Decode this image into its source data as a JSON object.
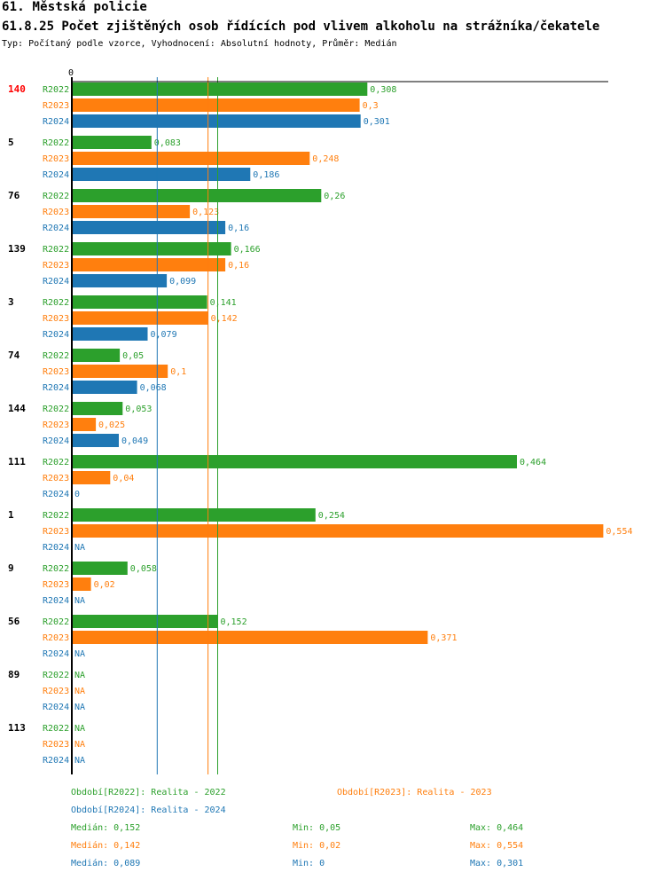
{
  "title": "61. Městská policie",
  "subtitle": "61.8.25 Počet zjištěných osob řídících pod vlivem alkoholu na strážníka/čekatele",
  "meta": "Typ: Počítaný podle vzorce, Vyhodnocení: Absolutní hodnoty, Průměr: Medián",
  "colors": {
    "R2022": "#2ca02c",
    "R2023": "#ff7f0e",
    "R2024": "#1f77b4",
    "highlight": "#ff0000",
    "axis": "#000000"
  },
  "chart_data": {
    "type": "bar",
    "orientation": "horizontal",
    "axis_zero_label": "0",
    "xlim": [
      0,
      0.554
    ],
    "series_names": [
      "R2022",
      "R2023",
      "R2024"
    ],
    "highlight_group": "140",
    "groups": [
      {
        "id": "140",
        "values": [
          0.308,
          0.3,
          0.301
        ],
        "labels": [
          "0,308",
          "0,3",
          "0,301"
        ]
      },
      {
        "id": "5",
        "values": [
          0.083,
          0.248,
          0.186
        ],
        "labels": [
          "0,083",
          "0,248",
          "0,186"
        ]
      },
      {
        "id": "76",
        "values": [
          0.26,
          0.123,
          0.16
        ],
        "labels": [
          "0,26",
          "0,123",
          "0,16"
        ]
      },
      {
        "id": "139",
        "values": [
          0.166,
          0.16,
          0.099
        ],
        "labels": [
          "0,166",
          "0,16",
          "0,099"
        ]
      },
      {
        "id": "3",
        "values": [
          0.141,
          0.142,
          0.079
        ],
        "labels": [
          "0,141",
          "0,142",
          "0,079"
        ]
      },
      {
        "id": "74",
        "values": [
          0.05,
          0.1,
          0.068
        ],
        "labels": [
          "0,05",
          "0,1",
          "0,068"
        ]
      },
      {
        "id": "144",
        "values": [
          0.053,
          0.025,
          0.049
        ],
        "labels": [
          "0,053",
          "0,025",
          "0,049"
        ]
      },
      {
        "id": "111",
        "values": [
          0.464,
          0.04,
          0
        ],
        "labels": [
          "0,464",
          "0,04",
          "0"
        ]
      },
      {
        "id": "1",
        "values": [
          0.254,
          0.554,
          null
        ],
        "labels": [
          "0,254",
          "0,554",
          "NA"
        ]
      },
      {
        "id": "9",
        "values": [
          0.058,
          0.02,
          null
        ],
        "labels": [
          "0,058",
          "0,02",
          "NA"
        ]
      },
      {
        "id": "56",
        "values": [
          0.152,
          0.371,
          null
        ],
        "labels": [
          "0,152",
          "0,371",
          "NA"
        ]
      },
      {
        "id": "89",
        "values": [
          null,
          null,
          null
        ],
        "labels": [
          "NA",
          "NA",
          "NA"
        ]
      },
      {
        "id": "113",
        "values": [
          null,
          null,
          null
        ],
        "labels": [
          "NA",
          "NA",
          "NA"
        ]
      }
    ],
    "medians": [
      0.152,
      0.142,
      0.089
    ]
  },
  "legend": {
    "periods": [
      {
        "series": "R2022",
        "text": "Období[R2022]: Realita - 2022"
      },
      {
        "series": "R2023",
        "text": "Období[R2023]: Realita - 2023"
      },
      {
        "series": "R2024",
        "text": "Období[R2024]: Realita - 2024"
      }
    ],
    "stats": [
      {
        "series": "R2022",
        "median": "Medián: 0,152",
        "min": "Min: 0,05",
        "max": "Max: 0,464"
      },
      {
        "series": "R2023",
        "median": "Medián: 0,142",
        "min": "Min: 0,02",
        "max": "Max: 0,554"
      },
      {
        "series": "R2024",
        "median": "Medián: 0,089",
        "min": "Min: 0",
        "max": "Max: 0,301"
      }
    ]
  }
}
